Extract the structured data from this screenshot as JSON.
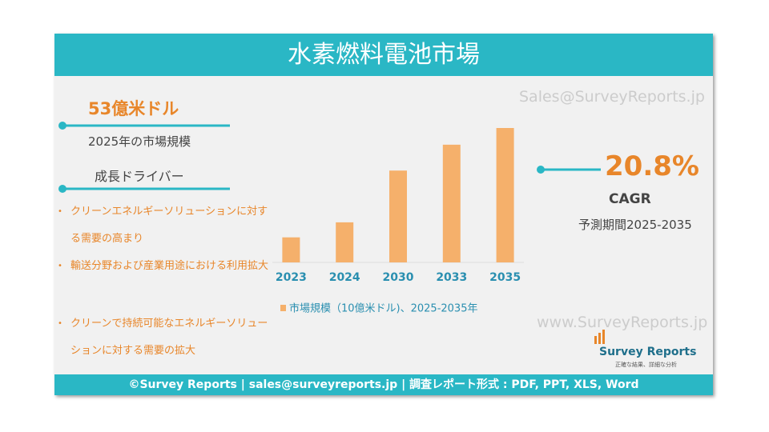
{
  "header": {
    "title": "水素燃料電池市場"
  },
  "left": {
    "market_value": "53億米ドル",
    "market_label": "2025年の市場規模",
    "drivers_title": "成長ドライバー",
    "drivers": [
      "クリーンエネルギーソリューションに対する需要の高まり",
      "輸送分野および産業用途における利用拡大",
      "クリーンで持続可能なエネルギーソリューションに対する需要の拡大"
    ]
  },
  "chart_data": {
    "type": "bar",
    "categories": [
      "2023",
      "2024",
      "2030",
      "2033",
      "2035"
    ],
    "series": [
      {
        "name": "市場規模（10億米ドル)、2025-2035年",
        "color": "#f5b06b",
        "values": [
          3.0,
          4.8,
          11,
          14.1,
          16.1
        ]
      }
    ]
  },
  "right": {
    "cagr_value": "20.8%",
    "cagr_label": "CAGR",
    "period": "予測期間2025-2035"
  },
  "watermarks": [
    "Sales@SurveyReports.jp",
    "www.SurveyReports.jp"
  ],
  "logo": {
    "name": "Survey Reports",
    "tagline": "正確な結果、詳細な分析"
  },
  "footer": {
    "text": "©Survey Reports | sales@surveyreports.jp |  調査レポート形式 : PDF, PPT, XLS, Word"
  }
}
